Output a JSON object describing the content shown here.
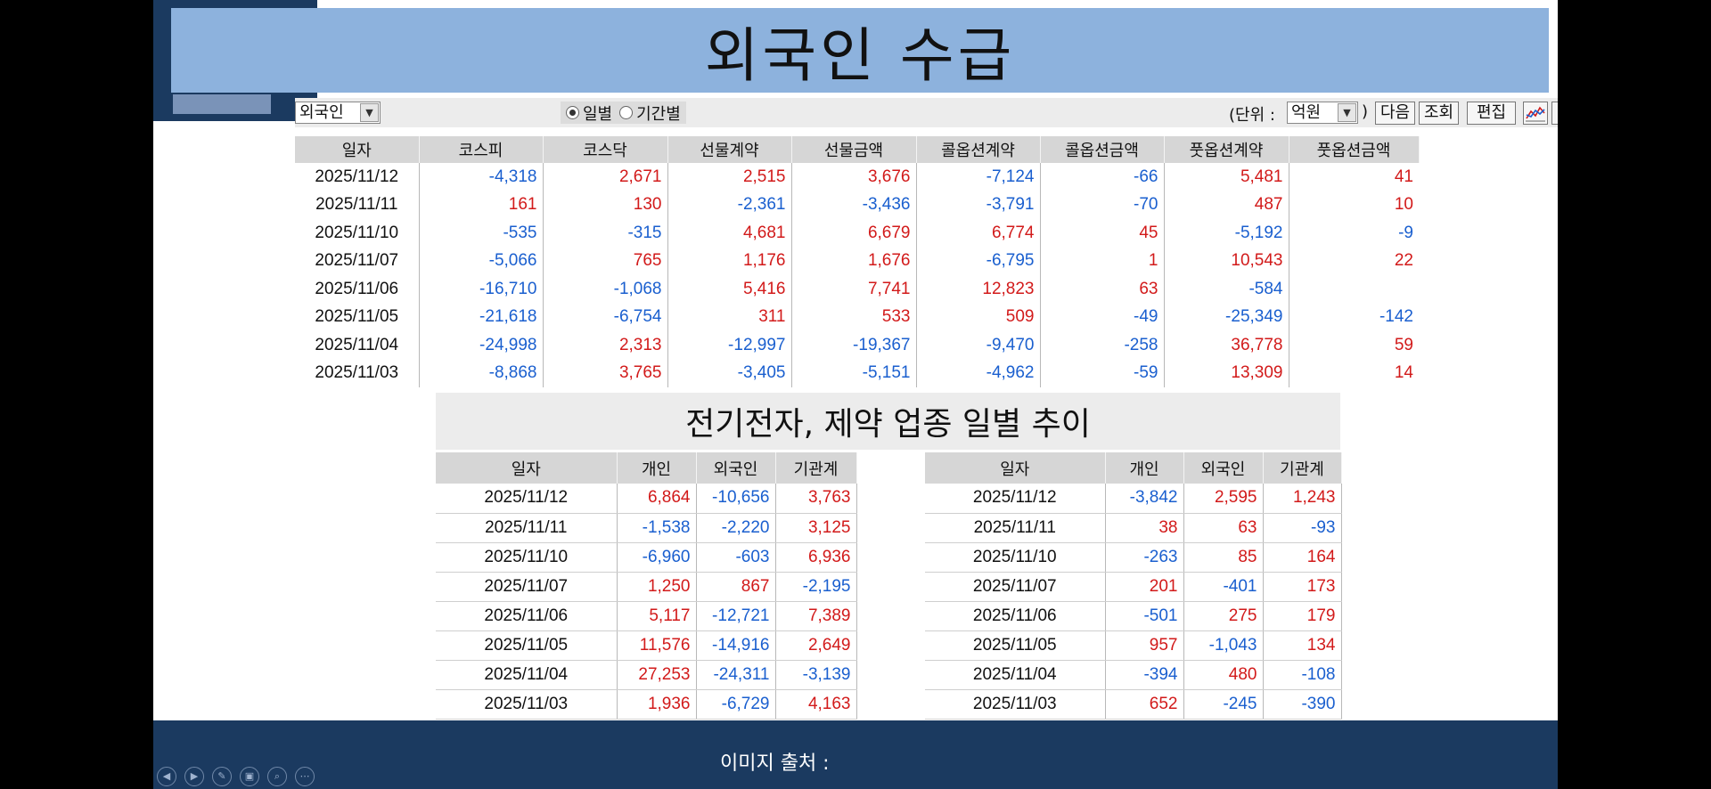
{
  "slide": {
    "title": "외국인 수급",
    "footer_text": "이미지 출처 :"
  },
  "toolbar": {
    "investor_select": "외국인",
    "radio_daily": "일별",
    "radio_period": "기간별",
    "unit_label": "(단위 :",
    "unit_select": "억원",
    "unit_close": ")",
    "btn_next": "다음",
    "btn_query": "조회",
    "btn_edit": "편집"
  },
  "main_table": {
    "headers": [
      "일자",
      "코스피",
      "코스닥",
      "선물계약",
      "선물금액",
      "콜옵션계약",
      "콜옵션금액",
      "풋옵션계약",
      "풋옵션금액"
    ],
    "rows": [
      [
        "2025/11/12",
        "-4,318",
        "2,671",
        "2,515",
        "3,676",
        "-7,124",
        "-66",
        "5,481",
        "41"
      ],
      [
        "2025/11/11",
        "161",
        "130",
        "-2,361",
        "-3,436",
        "-3,791",
        "-70",
        "487",
        "10"
      ],
      [
        "2025/11/10",
        "-535",
        "-315",
        "4,681",
        "6,679",
        "6,774",
        "45",
        "-5,192",
        "-9"
      ],
      [
        "2025/11/07",
        "-5,066",
        "765",
        "1,176",
        "1,676",
        "-6,795",
        "1",
        "10,543",
        "22"
      ],
      [
        "2025/11/06",
        "-16,710",
        "-1,068",
        "5,416",
        "7,741",
        "12,823",
        "63",
        "-584",
        ""
      ],
      [
        "2025/11/05",
        "-21,618",
        "-6,754",
        "311",
        "533",
        "509",
        "-49",
        "-25,349",
        "-142"
      ],
      [
        "2025/11/04",
        "-24,998",
        "2,313",
        "-12,997",
        "-19,367",
        "-9,470",
        "-258",
        "36,778",
        "59"
      ],
      [
        "2025/11/03",
        "-8,868",
        "3,765",
        "-3,405",
        "-5,151",
        "-4,962",
        "-59",
        "13,309",
        "14"
      ]
    ]
  },
  "section": {
    "title": "전기전자, 제약 업종 일별 추이"
  },
  "electronics_table": {
    "headers": [
      "일자",
      "개인",
      "외국인",
      "기관계"
    ],
    "rows": [
      [
        "2025/11/12",
        "6,864",
        "-10,656",
        "3,763"
      ],
      [
        "2025/11/11",
        "-1,538",
        "-2,220",
        "3,125"
      ],
      [
        "2025/11/10",
        "-6,960",
        "-603",
        "6,936"
      ],
      [
        "2025/11/07",
        "1,250",
        "867",
        "-2,195"
      ],
      [
        "2025/11/06",
        "5,117",
        "-12,721",
        "7,389"
      ],
      [
        "2025/11/05",
        "11,576",
        "-14,916",
        "2,649"
      ],
      [
        "2025/11/04",
        "27,253",
        "-24,311",
        "-3,139"
      ],
      [
        "2025/11/03",
        "1,936",
        "-6,729",
        "4,163"
      ]
    ]
  },
  "pharma_table": {
    "headers": [
      "일자",
      "개인",
      "외국인",
      "기관계"
    ],
    "rows": [
      [
        "2025/11/12",
        "-3,842",
        "2,595",
        "1,243"
      ],
      [
        "2025/11/11",
        "38",
        "63",
        "-93"
      ],
      [
        "2025/11/10",
        "-263",
        "85",
        "164"
      ],
      [
        "2025/11/07",
        "201",
        "-401",
        "173"
      ],
      [
        "2025/11/06",
        "-501",
        "275",
        "179"
      ],
      [
        "2025/11/05",
        "957",
        "-1,043",
        "134"
      ],
      [
        "2025/11/04",
        "-394",
        "480",
        "-108"
      ],
      [
        "2025/11/03",
        "652",
        "-245",
        "-390"
      ]
    ]
  },
  "colors": {
    "positive": "#d21a1a",
    "negative": "#1a5fcf",
    "title_bar": "#8db2dd",
    "footer": "#1b3a60"
  },
  "nav_icons": [
    "prev-icon",
    "next-icon",
    "pen-icon",
    "slides-icon",
    "zoom-icon",
    "more-icon"
  ]
}
